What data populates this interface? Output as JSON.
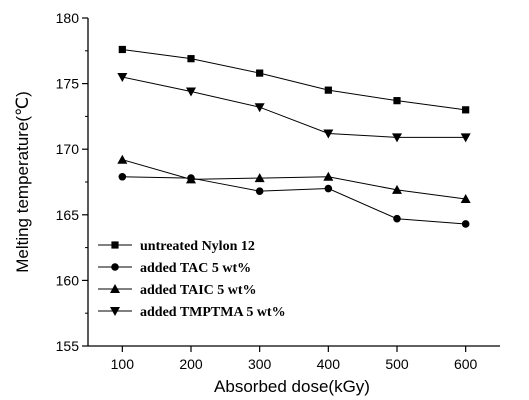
{
  "chart_data": {
    "type": "line",
    "title": "",
    "xlabel": "Absorbed dose(kGy)",
    "ylabel": "Melting temperature(℃)",
    "x": [
      100,
      200,
      300,
      400,
      500,
      600
    ],
    "xlim": [
      50,
      650
    ],
    "ylim": [
      155,
      180
    ],
    "xticks": [
      "100",
      "200",
      "300",
      "400",
      "500",
      "600"
    ],
    "yticks": [
      "155",
      "160",
      "165",
      "170",
      "175",
      "180"
    ],
    "grid": false,
    "legend_position": "bottom-left",
    "series": [
      {
        "name": "untreated Nylon 12",
        "marker": "square",
        "values": [
          177.6,
          176.9,
          175.8,
          174.5,
          173.7,
          173.0
        ]
      },
      {
        "name": "added TAC 5 wt%",
        "marker": "circle",
        "values": [
          167.9,
          167.8,
          166.8,
          167.0,
          164.7,
          164.3
        ]
      },
      {
        "name": "added TAIC 5 wt%",
        "marker": "triangle-up",
        "values": [
          169.2,
          167.7,
          167.8,
          167.9,
          166.9,
          166.2
        ]
      },
      {
        "name": "added TMPTMA 5 wt%",
        "marker": "triangle-down",
        "values": [
          175.5,
          174.4,
          173.2,
          171.2,
          170.9,
          170.9
        ]
      }
    ]
  }
}
